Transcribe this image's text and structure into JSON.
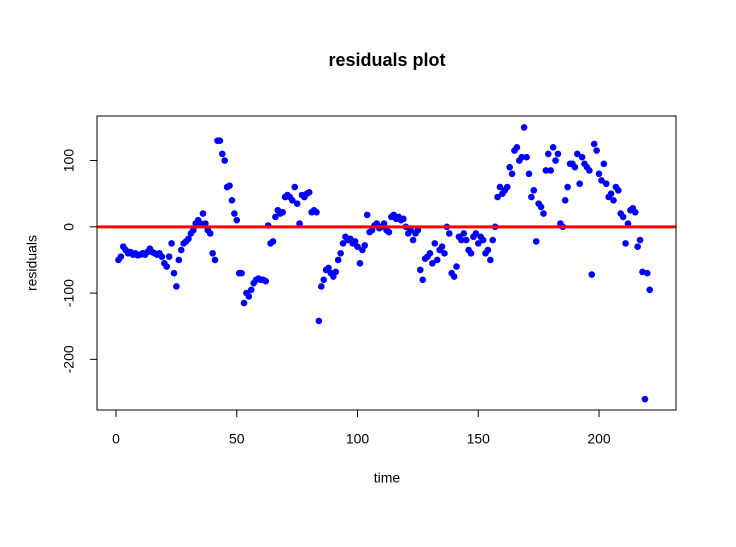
{
  "chart_data": {
    "type": "scatter",
    "title": "residuals plot",
    "xlabel": "time",
    "ylabel": "residuals",
    "x": [
      1,
      2,
      3,
      4,
      5,
      6,
      7,
      8,
      9,
      10,
      11,
      12,
      13,
      14,
      15,
      16,
      17,
      18,
      19,
      20,
      21,
      22,
      23,
      24,
      25,
      26,
      27,
      28,
      29,
      30,
      31,
      32,
      33,
      34,
      35,
      36,
      37,
      38,
      39,
      40,
      41,
      42,
      43,
      44,
      45,
      46,
      47,
      48,
      49,
      50,
      51,
      52,
      53,
      54,
      55,
      56,
      57,
      58,
      59,
      60,
      61,
      62,
      63,
      64,
      65,
      66,
      67,
      68,
      69,
      70,
      71,
      72,
      73,
      74,
      75,
      76,
      77,
      78,
      79,
      80,
      81,
      82,
      83,
      84,
      85,
      86,
      87,
      88,
      89,
      90,
      91,
      92,
      93,
      94,
      95,
      96,
      97,
      98,
      99,
      100,
      101,
      102,
      103,
      104,
      105,
      106,
      107,
      108,
      109,
      110,
      111,
      112,
      113,
      114,
      115,
      116,
      117,
      118,
      119,
      120,
      121,
      122,
      123,
      124,
      125,
      126,
      127,
      128,
      129,
      130,
      131,
      132,
      133,
      134,
      135,
      136,
      137,
      138,
      139,
      140,
      141,
      142,
      143,
      144,
      145,
      146,
      147,
      148,
      149,
      150,
      151,
      152,
      153,
      154,
      155,
      156,
      157,
      158,
      159,
      160,
      161,
      162,
      163,
      164,
      165,
      166,
      167,
      168,
      169,
      170,
      171,
      172,
      173,
      174,
      175,
      176,
      177,
      178,
      179,
      180,
      181,
      182,
      183,
      184,
      185,
      186,
      187,
      188,
      189,
      190,
      191,
      192,
      193,
      194,
      195,
      196,
      197,
      198,
      199,
      200,
      201,
      202,
      203,
      204,
      205,
      206,
      207,
      208,
      209,
      210,
      211,
      212,
      213,
      214,
      215,
      216,
      217,
      218,
      219,
      220,
      221
    ],
    "values": [
      -50,
      -45,
      -30,
      -35,
      -40,
      -38,
      -42,
      -40,
      -43,
      -42,
      -40,
      -42,
      -38,
      -33,
      -38,
      -40,
      -42,
      -40,
      -45,
      -55,
      -60,
      -45,
      -25,
      -70,
      -90,
      -50,
      -35,
      -25,
      -22,
      -18,
      -10,
      -5,
      5,
      10,
      5,
      20,
      5,
      -5,
      -10,
      -40,
      -50,
      130,
      130,
      110,
      100,
      60,
      62,
      40,
      20,
      10,
      -70,
      -70,
      -115,
      -100,
      -105,
      -95,
      -85,
      -80,
      -78,
      -80,
      -80,
      -82,
      2,
      -25,
      -22,
      15,
      25,
      20,
      22,
      45,
      48,
      45,
      40,
      60,
      35,
      5,
      48,
      45,
      50,
      52,
      22,
      25,
      22,
      -142,
      -90,
      -80,
      -65,
      -62,
      -70,
      -75,
      -68,
      -50,
      -40,
      -25,
      -15,
      -20,
      -18,
      -25,
      -22,
      -30,
      -55,
      -35,
      -28,
      18,
      -8,
      -5,
      2,
      5,
      -2,
      0,
      5,
      -5,
      -8,
      15,
      18,
      12,
      15,
      10,
      12,
      0,
      -10,
      -5,
      -20,
      -10,
      -5,
      -65,
      -80,
      -48,
      -45,
      -40,
      -55,
      -25,
      -50,
      -35,
      -30,
      -40,
      0,
      -10,
      -70,
      -75,
      -60,
      -15,
      -20,
      -10,
      -20,
      -35,
      -40,
      -15,
      -10,
      -25,
      -15,
      -20,
      -40,
      -35,
      -50,
      -20,
      0,
      45,
      60,
      50,
      55,
      60,
      90,
      80,
      115,
      120,
      100,
      105,
      150,
      105,
      80,
      45,
      55,
      -22,
      35,
      30,
      20,
      85,
      110,
      85,
      120,
      100,
      110,
      5,
      0,
      40,
      60,
      95,
      95,
      90,
      110,
      65,
      105,
      95,
      90,
      85,
      -72,
      125,
      115,
      80,
      70,
      95,
      65,
      45,
      50,
      40,
      60,
      55,
      20,
      15,
      -25,
      5,
      25,
      28,
      22,
      -30,
      -20,
      -68,
      -260,
      -70,
      -95
    ],
    "color": "#0000ff",
    "hline": 0,
    "hline_color": "#ff0000",
    "xlim": [
      -7.88,
      231.88
    ],
    "xticks": [
      0,
      50,
      100,
      150,
      200
    ],
    "ylim": [
      -276.4,
      167.2
    ],
    "yticks": [
      -200,
      -100,
      0,
      100
    ]
  }
}
